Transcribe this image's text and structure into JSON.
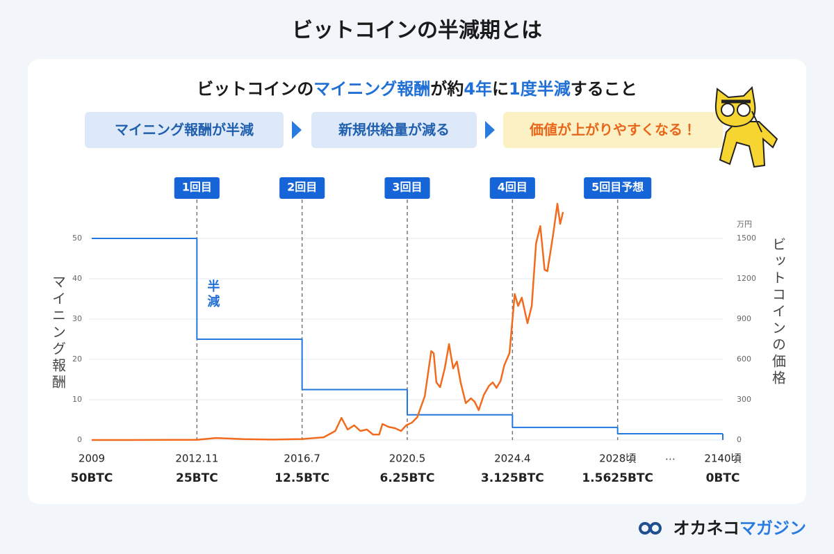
{
  "header": {
    "title": "ビットコインの半減期とは"
  },
  "subtitle": [
    "ビットコインの",
    "マイニング報酬",
    "が約",
    "4年",
    "に",
    "1度半減",
    "すること"
  ],
  "flow": [
    "マイニング報酬が半減",
    "新規供給量が減る",
    "価値が上がりやすくなる！"
  ],
  "brand": {
    "name": "オカネコ",
    "suffix": "マガジン"
  },
  "chart_data": {
    "type": "line",
    "ylabel": "マイニング報酬",
    "y2label": "ビットコインの価格",
    "y2unit": "万円",
    "ylim": [
      0,
      60
    ],
    "yticks": [
      0,
      10,
      20,
      30,
      40,
      50
    ],
    "y2lim": [
      0,
      1800
    ],
    "y2ticks": [
      0,
      300,
      600,
      900,
      1200,
      1500
    ],
    "xlim": [
      2009,
      2140
    ],
    "xticks": [
      2009,
      {
        "value": 2012.9,
        "label": "2012.11"
      },
      {
        "value": 2016.5,
        "label": "2016.7"
      },
      {
        "value": 2020.4,
        "label": "2020.5"
      },
      {
        "value": 2024.3,
        "label": "2024.4"
      },
      {
        "value": 2028,
        "label": "2028頃"
      },
      {
        "value": 2140,
        "label": "2140頃"
      }
    ],
    "axis_break": "…",
    "grid": true,
    "annotation": "半減",
    "events": [
      {
        "x": 2012.9,
        "label": "1回目"
      },
      {
        "x": 2016.5,
        "label": "2回目"
      },
      {
        "x": 2020.4,
        "label": "3回目"
      },
      {
        "x": 2024.3,
        "label": "4回目"
      },
      {
        "x": 2028,
        "label": "5回目予想"
      }
    ],
    "series": [
      {
        "color": "#2277e0",
        "step": true,
        "x": [
          2009,
          2012.9,
          2016.5,
          2020.4,
          2024.3,
          2028,
          2140
        ],
        "values": [
          50,
          25,
          12.5,
          6.25,
          3.125,
          1.5625,
          0
        ],
        "value_labels": [
          "50BTC",
          "25BTC",
          "12.5BTC",
          "6.25BTC",
          "3.125BTC",
          "1.5625BTC",
          "0BTC"
        ]
      },
      {
        "color": "#f26b1d",
        "axis": "y2",
        "x": [
          2009,
          2010.5,
          2012,
          2012.9,
          2013.55,
          2014.5,
          2015.5,
          2016.5,
          2017.3,
          2017.73,
          2017.96,
          2018.19,
          2018.43,
          2018.66,
          2018.9,
          2019.13,
          2019.36,
          2019.48,
          2019.71,
          2019.94,
          2020.17,
          2020.36,
          2020.57,
          2020.77,
          2021.05,
          2021.29,
          2021.38,
          2021.48,
          2021.62,
          2021.79,
          2021.95,
          2022.1,
          2022.24,
          2022.38,
          2022.57,
          2022.76,
          2022.9,
          2023.05,
          2023.24,
          2023.43,
          2023.57,
          2023.71,
          2023.86,
          2024.0,
          2024.19,
          2024.38,
          2024.5,
          2024.63,
          2024.83,
          2024.98,
          2025.13,
          2025.28,
          2025.43,
          2025.53,
          2025.73,
          2025.88,
          2025.98,
          2026.08
        ],
        "values": [
          0,
          0,
          1,
          1,
          15,
          6,
          3,
          7,
          20,
          67,
          165,
          78,
          109,
          67,
          78,
          41,
          41,
          119,
          98,
          88,
          67,
          109,
          129,
          170,
          326,
          662,
          646,
          429,
          393,
          533,
          714,
          533,
          584,
          429,
          274,
          310,
          284,
          222,
          336,
          403,
          429,
          388,
          440,
          558,
          646,
          1086,
          998,
          1060,
          869,
          998,
          1463,
          1592,
          1267,
          1256,
          1525,
          1758,
          1608,
          1696
        ]
      }
    ]
  }
}
